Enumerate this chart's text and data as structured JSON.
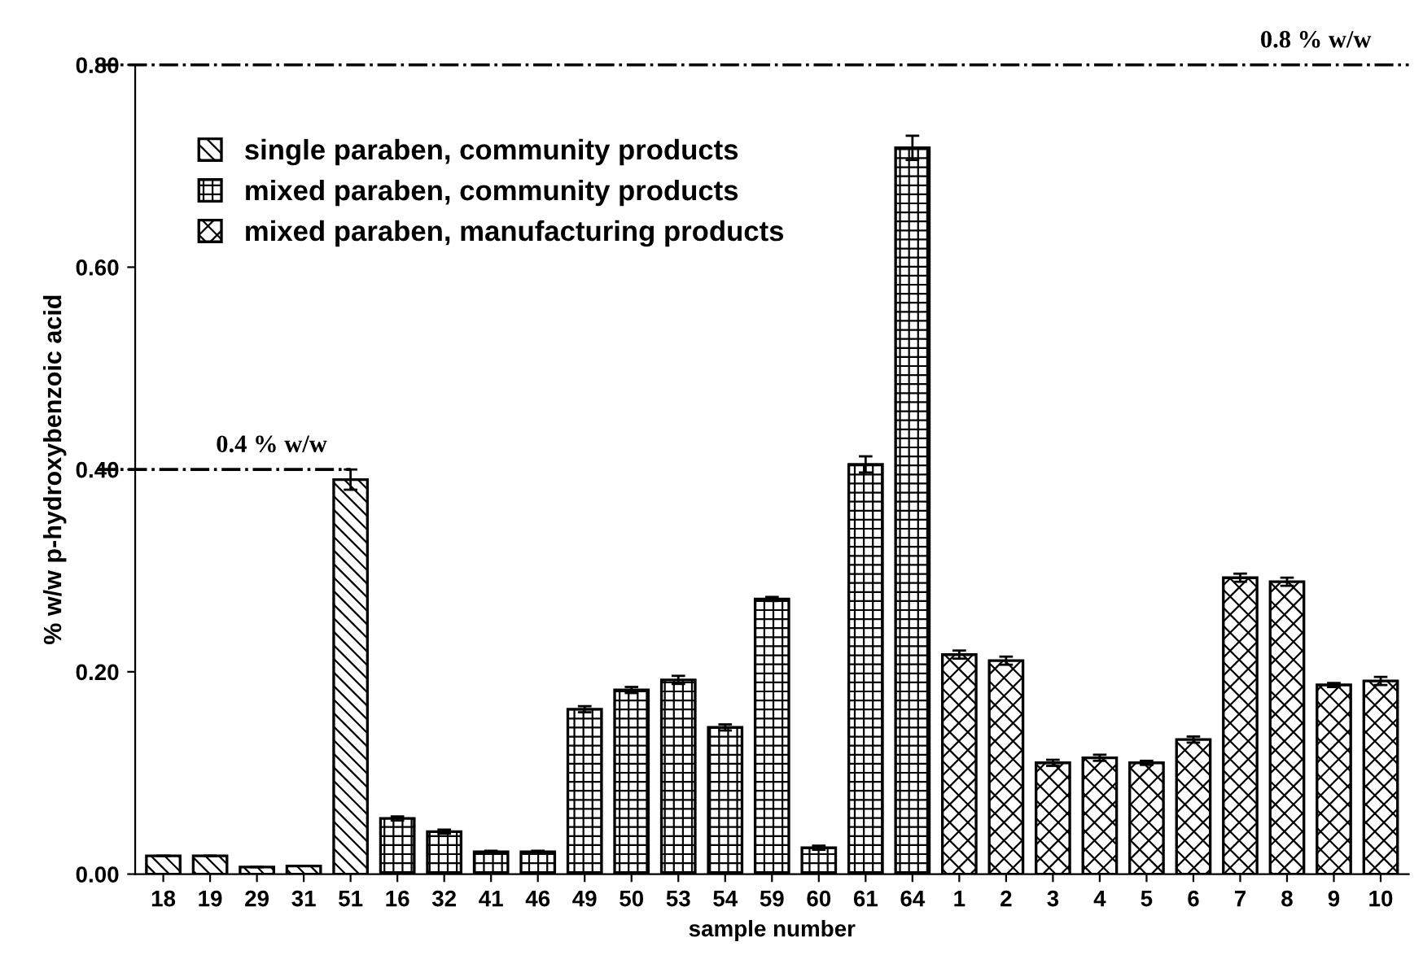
{
  "chart_data": {
    "type": "bar",
    "xlabel": "sample number",
    "ylabel": "% w/w p-hydroxybenzoic acid",
    "categories": [
      "18",
      "19",
      "29",
      "31",
      "51",
      "16",
      "32",
      "41",
      "46",
      "49",
      "50",
      "53",
      "54",
      "59",
      "60",
      "61",
      "64",
      "1",
      "2",
      "3",
      "4",
      "5",
      "6",
      "7",
      "8",
      "9",
      "10"
    ],
    "series": [
      {
        "name": "single paraben, community products",
        "color": "#000000",
        "values": [
          0.018,
          0.018,
          0.007,
          0.008,
          0.39,
          null,
          null,
          null,
          null,
          null,
          null,
          null,
          null,
          null,
          null,
          null,
          null,
          null,
          null,
          null,
          null,
          null,
          null,
          null,
          null,
          null,
          null
        ],
        "errors": [
          null,
          null,
          null,
          null,
          0.01,
          null,
          null,
          null,
          null,
          null,
          null,
          null,
          null,
          null,
          null,
          null,
          null,
          null,
          null,
          null,
          null,
          null,
          null,
          null,
          null,
          null,
          null
        ]
      },
      {
        "name": "mixed paraben, community products",
        "color": "#000000",
        "values": [
          null,
          null,
          null,
          null,
          null,
          0.055,
          0.042,
          0.022,
          0.022,
          0.163,
          0.182,
          0.192,
          0.145,
          0.272,
          0.026,
          0.405,
          0.718,
          null,
          null,
          null,
          null,
          null,
          null,
          null,
          null,
          null,
          null
        ],
        "errors": [
          null,
          null,
          null,
          null,
          null,
          0.002,
          0.002,
          0.001,
          0.001,
          0.003,
          0.003,
          0.004,
          0.003,
          0.002,
          0.002,
          0.008,
          0.012,
          null,
          null,
          null,
          null,
          null,
          null,
          null,
          null,
          null,
          null
        ]
      },
      {
        "name": "mixed paraben, manufacturing products",
        "color": "#000000",
        "values": [
          null,
          null,
          null,
          null,
          null,
          null,
          null,
          null,
          null,
          null,
          null,
          null,
          null,
          null,
          null,
          null,
          null,
          0.217,
          0.211,
          0.11,
          0.115,
          0.11,
          0.133,
          0.293,
          0.289,
          0.187,
          0.191
        ],
        "errors": [
          null,
          null,
          null,
          null,
          null,
          null,
          null,
          null,
          null,
          null,
          null,
          null,
          null,
          null,
          null,
          null,
          null,
          0.004,
          0.004,
          0.003,
          0.003,
          0.002,
          0.003,
          0.004,
          0.004,
          0.002,
          0.004
        ]
      }
    ],
    "ylim": [
      0,
      0.8
    ],
    "yticks": [
      {
        "value": 0,
        "label": "0.00"
      },
      {
        "value": 0.2,
        "label": "0.20"
      },
      {
        "value": 0.4,
        "label": "0.40"
      },
      {
        "value": 0.6,
        "label": "0.60"
      },
      {
        "value": 0.8,
        "label": "0.80"
      }
    ],
    "ref_lines": [
      {
        "axis": "y",
        "value": 0.4,
        "label": "0.4 % w/w",
        "color": "#000000",
        "line_style": "dashdot"
      },
      {
        "axis": "y",
        "value": 0.8,
        "label": "0.8 % w/w",
        "color": "#000000",
        "line_style": "dashdot"
      }
    ],
    "legend": "top left",
    "grid": false
  }
}
